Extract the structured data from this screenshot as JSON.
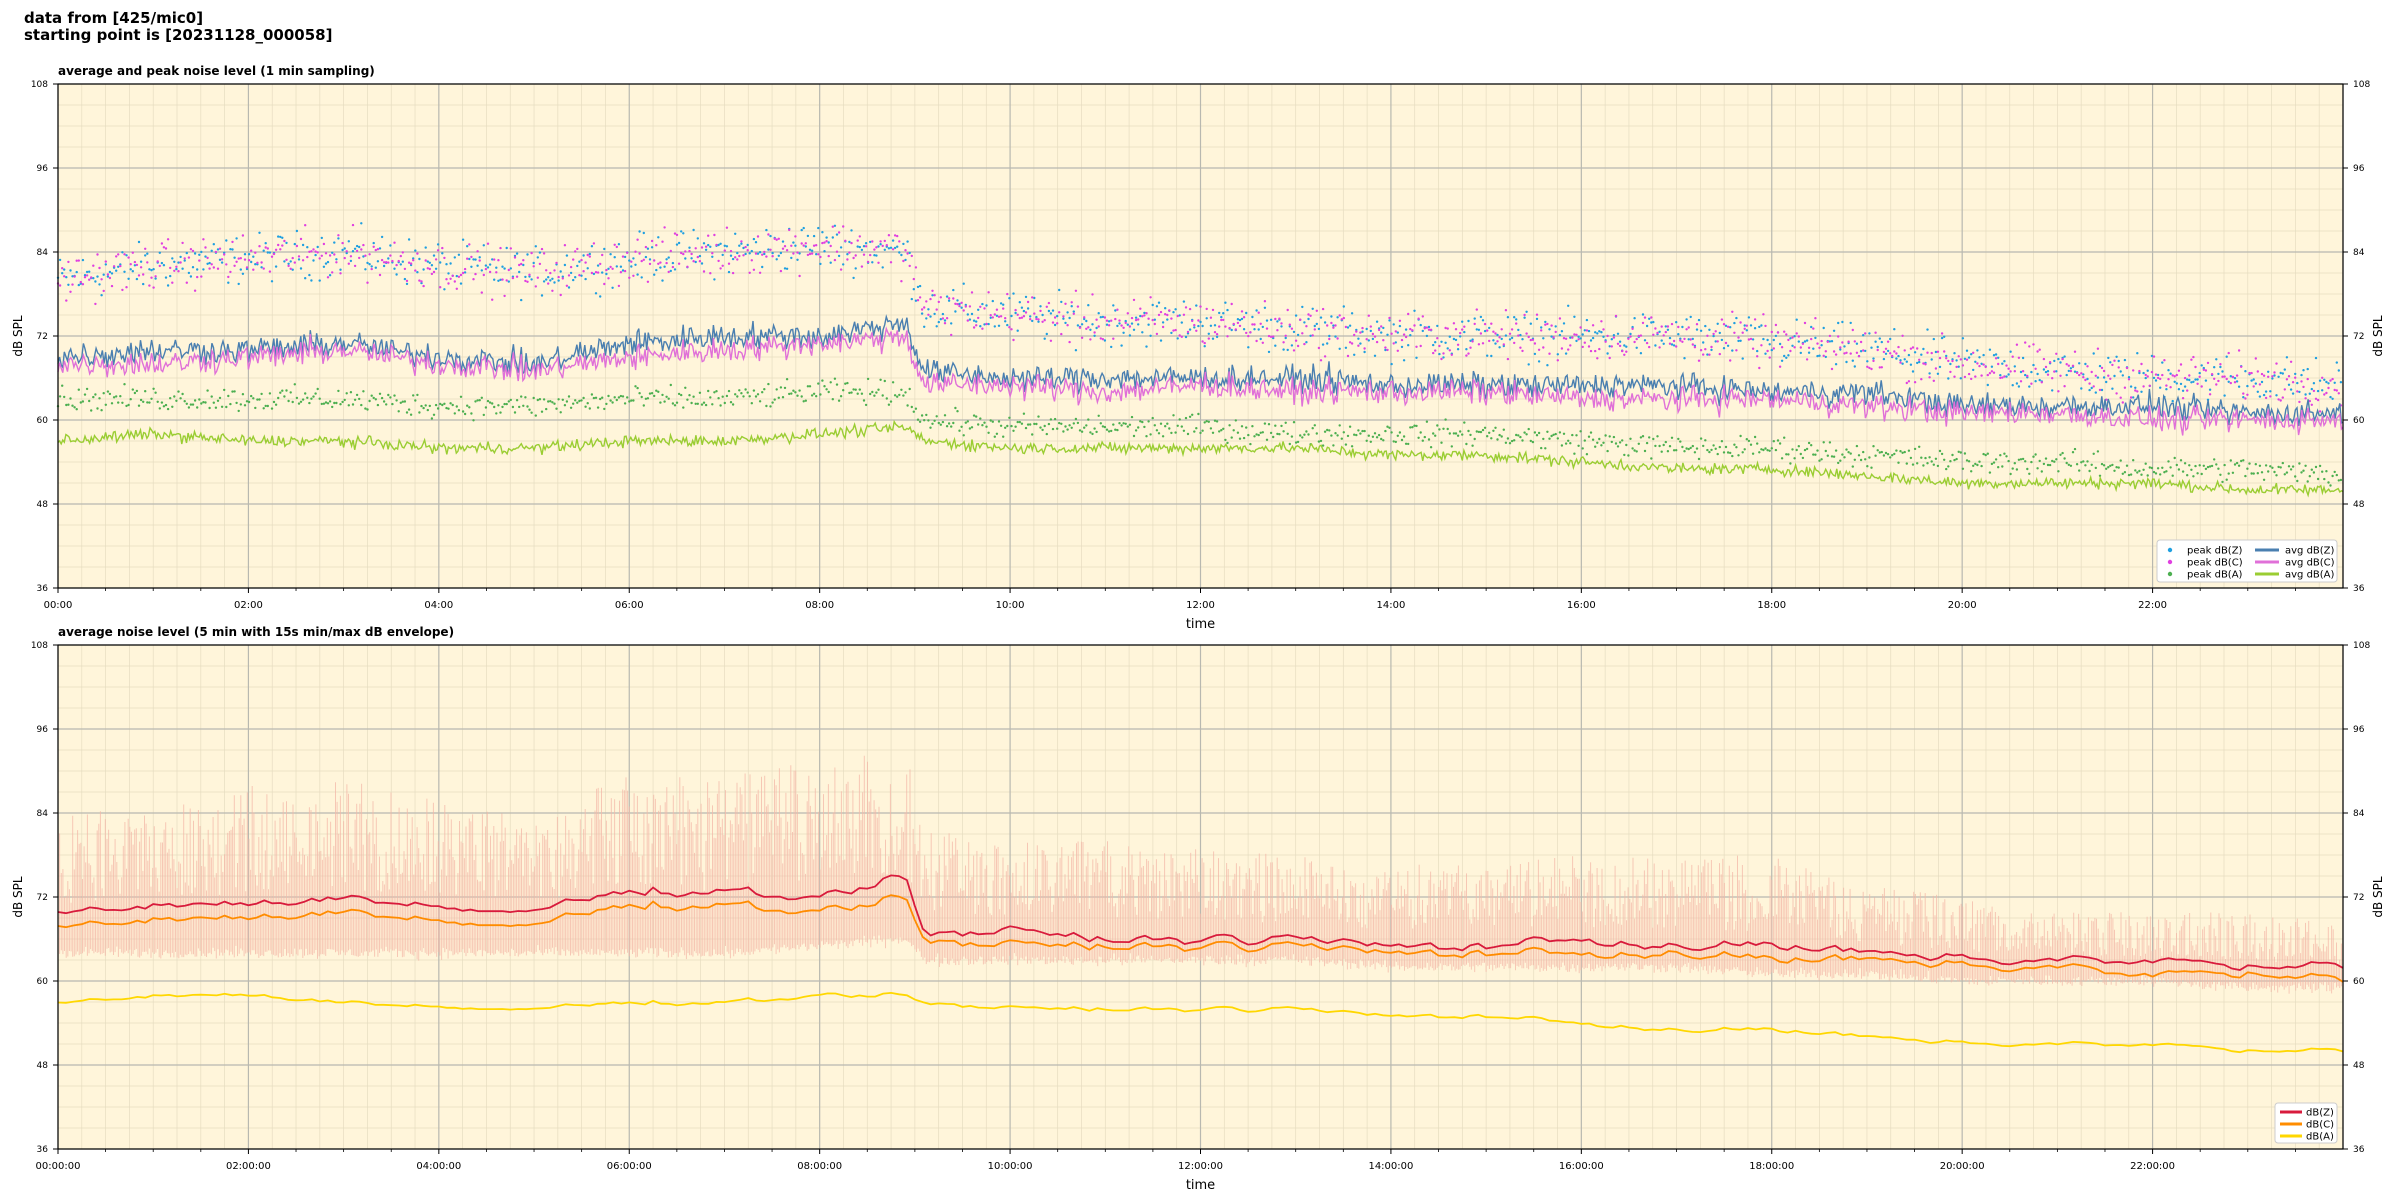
{
  "header": {
    "line1": "data from [425/mic0]",
    "line2": "starting point is [20231128_000058]"
  },
  "colors": {
    "plot_bg": "#fff5da",
    "peak_z": "#1f9fe0",
    "peak_c": "#e040e0",
    "peak_a": "#4caf50",
    "avg_z": "#4a7fb0",
    "avg_c": "#e070d8",
    "avg_a": "#9acd32",
    "db_z": "#d81b3c",
    "db_c": "#ff8c00",
    "db_a": "#ffd700",
    "envelope": "#f4b8a8"
  },
  "chart_data": [
    {
      "type": "line",
      "title": "average and peak noise level (1 min sampling)",
      "xlabel": "time",
      "ylabel": "dB SPL",
      "ylabel_right": "dB SPL",
      "xlim": [
        0,
        24
      ],
      "ylim": [
        36,
        108
      ],
      "yticks": [
        "36",
        "48",
        "60",
        "72",
        "84",
        "96",
        "108"
      ],
      "xticks": [
        "00:00",
        "02:00",
        "04:00",
        "06:00",
        "08:00",
        "10:00",
        "12:00",
        "14:00",
        "16:00",
        "18:00",
        "20:00",
        "22:00"
      ],
      "grid": true,
      "legend_position": "lower-right",
      "series": [
        {
          "name": "peak dB(Z)",
          "kind": "scatter",
          "color": "#1f9fe0",
          "x": [
            0,
            1,
            2,
            3,
            4,
            5,
            6,
            7,
            8,
            8.9,
            9.1,
            10,
            11,
            12,
            13,
            14,
            15,
            16,
            17,
            18,
            19,
            20,
            21,
            22,
            23,
            24
          ],
          "y": [
            80,
            82,
            83,
            84,
            82,
            81,
            83,
            84,
            85,
            84,
            76,
            75,
            74,
            74,
            73,
            72,
            72,
            72,
            72,
            71,
            70,
            68,
            67,
            66,
            66,
            65
          ]
        },
        {
          "name": "peak dB(C)",
          "kind": "scatter",
          "color": "#e040e0",
          "x": [
            0,
            1,
            2,
            3,
            4,
            5,
            6,
            7,
            8,
            8.9,
            9.1,
            10,
            11,
            12,
            13,
            14,
            15,
            16,
            17,
            18,
            19,
            20,
            21,
            22,
            23,
            24
          ],
          "y": [
            80,
            82,
            83,
            84,
            82,
            81,
            83,
            84,
            85,
            84,
            76,
            75,
            74,
            74,
            73,
            72,
            72,
            72,
            72,
            71,
            70,
            68,
            67,
            66,
            66,
            65
          ]
        },
        {
          "name": "peak dB(A)",
          "kind": "scatter",
          "color": "#4caf50",
          "x": [
            0,
            1,
            2,
            3,
            4,
            5,
            6,
            7,
            8,
            8.9,
            9.1,
            10,
            11,
            12,
            13,
            14,
            15,
            16,
            17,
            18,
            19,
            20,
            21,
            22,
            23,
            24
          ],
          "y": [
            63,
            63,
            63,
            63,
            62,
            62,
            63,
            63,
            64,
            64,
            60,
            59,
            59,
            59,
            58,
            58,
            58,
            57,
            56,
            56,
            55,
            54,
            54,
            53,
            53,
            52
          ]
        },
        {
          "name": "avg dB(Z)",
          "kind": "line",
          "color": "#4a7fb0",
          "x": [
            0,
            1,
            2,
            3,
            4,
            5,
            6,
            7,
            8,
            8.9,
            9.1,
            10,
            11,
            12,
            13,
            14,
            15,
            16,
            17,
            18,
            19,
            20,
            21,
            22,
            23,
            24
          ],
          "y": [
            69,
            70,
            70,
            71,
            69,
            68,
            71,
            72,
            72,
            74,
            67,
            66,
            66,
            66,
            66,
            65,
            65,
            65,
            65,
            64,
            64,
            62,
            62,
            62,
            61,
            61
          ]
        },
        {
          "name": "avg dB(C)",
          "kind": "line",
          "color": "#e070d8",
          "x": [
            0,
            1,
            2,
            3,
            4,
            5,
            6,
            7,
            8,
            8.9,
            9.1,
            10,
            11,
            12,
            13,
            14,
            15,
            16,
            17,
            18,
            19,
            20,
            21,
            22,
            23,
            24
          ],
          "y": [
            68,
            68,
            69,
            70,
            68,
            67,
            69,
            70,
            71,
            72,
            65,
            65,
            64,
            65,
            64,
            64,
            64,
            63,
            63,
            63,
            62,
            61,
            61,
            60,
            60,
            60
          ]
        },
        {
          "name": "avg dB(A)",
          "kind": "line",
          "color": "#9acd32",
          "x": [
            0,
            1,
            2,
            3,
            4,
            5,
            6,
            7,
            8,
            8.9,
            9.1,
            10,
            11,
            12,
            13,
            14,
            15,
            16,
            17,
            18,
            19,
            20,
            21,
            22,
            23,
            24
          ],
          "y": [
            57,
            58,
            57,
            57,
            56,
            56,
            57,
            57,
            58,
            59,
            57,
            56,
            56,
            56,
            56,
            55,
            55,
            54,
            53,
            53,
            52,
            51,
            51,
            51,
            50,
            50
          ]
        }
      ]
    },
    {
      "type": "line",
      "title": "average noise level (5 min with 15s min/max dB envelope)",
      "xlabel": "time",
      "ylabel": "dB SPL",
      "ylabel_right": "dB SPL",
      "xlim": [
        0,
        24
      ],
      "ylim": [
        36,
        108
      ],
      "yticks": [
        "36",
        "48",
        "60",
        "72",
        "84",
        "96",
        "108"
      ],
      "xticks": [
        "00:00:00",
        "02:00:00",
        "04:00:00",
        "06:00:00",
        "08:00:00",
        "10:00:00",
        "12:00:00",
        "14:00:00",
        "16:00:00",
        "18:00:00",
        "20:00:00",
        "22:00:00"
      ],
      "grid": true,
      "legend_position": "lower-right",
      "envelope": {
        "x": [
          0,
          1,
          2,
          3,
          4,
          5,
          6,
          7,
          8,
          8.9,
          9.1,
          10,
          11,
          12,
          13,
          14,
          15,
          16,
          17,
          18,
          19,
          20,
          21,
          22,
          23,
          24
        ],
        "min": [
          64,
          64,
          64,
          64,
          64,
          64,
          64,
          64,
          65,
          66,
          63,
          63,
          63,
          63,
          63,
          62,
          62,
          62,
          62,
          61,
          61,
          60,
          60,
          60,
          59,
          59
        ],
        "max": [
          84,
          86,
          88,
          89,
          86,
          84,
          90,
          89,
          92,
          93,
          82,
          80,
          80,
          79,
          78,
          77,
          77,
          78,
          78,
          78,
          74,
          72,
          70,
          70,
          70,
          68
        ]
      },
      "series": [
        {
          "name": "dB(Z)",
          "color": "#d81b3c",
          "x": [
            0,
            1,
            2,
            3,
            4,
            5,
            6,
            7,
            8,
            8.9,
            9.1,
            10,
            11,
            12,
            13,
            14,
            15,
            16,
            17,
            18,
            19,
            20,
            21,
            22,
            23,
            24
          ],
          "y": [
            70,
            71,
            71,
            72,
            70,
            70,
            73,
            73,
            72,
            75,
            67,
            67,
            66,
            66,
            66,
            65,
            65,
            66,
            65,
            65,
            64,
            63,
            63,
            63,
            62,
            62
          ]
        },
        {
          "name": "dB(C)",
          "color": "#ff8c00",
          "x": [
            0,
            1,
            2,
            3,
            4,
            5,
            6,
            7,
            8,
            8.9,
            9.1,
            10,
            11,
            12,
            13,
            14,
            15,
            16,
            17,
            18,
            19,
            20,
            21,
            22,
            23,
            24
          ],
          "y": [
            68,
            69,
            69,
            70,
            68,
            68,
            71,
            71,
            70,
            72,
            66,
            65,
            65,
            65,
            65,
            64,
            64,
            64,
            64,
            63,
            63,
            62,
            62,
            61,
            61,
            60
          ]
        },
        {
          "name": "dB(A)",
          "color": "#ffd700",
          "x": [
            0,
            1,
            2,
            3,
            4,
            5,
            6,
            7,
            8,
            8.9,
            9.1,
            10,
            11,
            12,
            13,
            14,
            15,
            16,
            17,
            18,
            19,
            20,
            21,
            22,
            23,
            24
          ],
          "y": [
            57,
            58,
            58,
            57,
            56,
            56,
            57,
            57,
            58,
            58,
            57,
            56,
            56,
            56,
            56,
            55,
            55,
            54,
            53,
            53,
            52,
            51,
            51,
            51,
            50,
            50
          ]
        }
      ]
    }
  ]
}
